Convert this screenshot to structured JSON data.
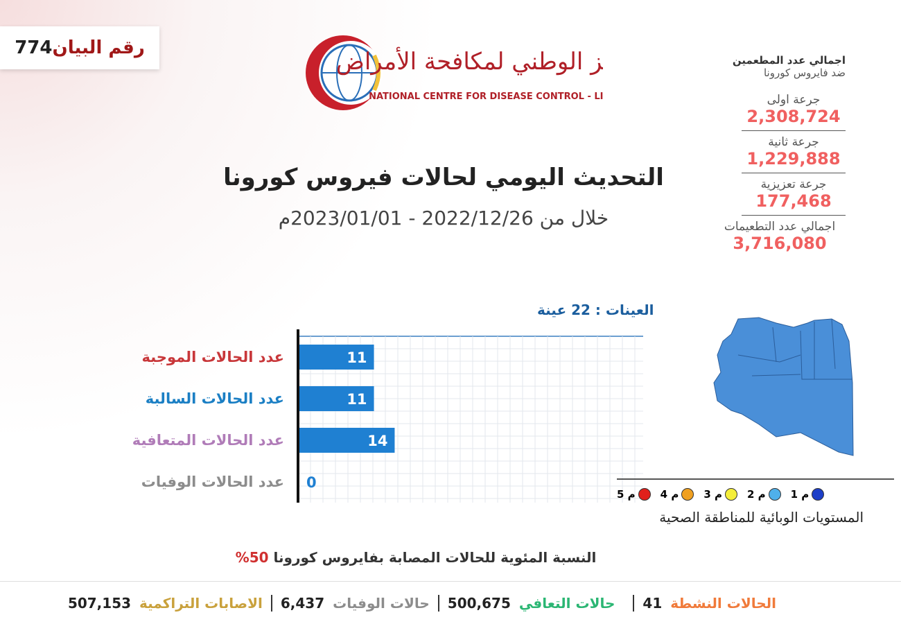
{
  "statement": {
    "label": "رقم البيان",
    "number": "774"
  },
  "logo": {
    "name_ar": "المركز الوطني لمكافحة الأمراض",
    "name_en": "NATIONAL CENTRE FOR DISEASE CONTROL - LIBYA"
  },
  "title": "التحديث اليومي لحالات فيروس كورونا",
  "subtitle": "خلال من 2022/12/26 - 2023/01/01م",
  "vaccination": {
    "heading": "اجمالي عدد المطعمين",
    "subheading": "ضد فايروس كورونا",
    "items": [
      {
        "label": "جرعة اولى",
        "value": "2,308,724"
      },
      {
        "label": "جرعة ثانية",
        "value": "1,229,888"
      },
      {
        "label": "جرعة تعزيزية",
        "value": "177,468"
      },
      {
        "label": "اجمالي عدد التطعيمات",
        "value": "3,716,080"
      }
    ]
  },
  "chart_data": {
    "type": "bar",
    "orientation": "horizontal",
    "title": "عدد العينات : 22 عينة",
    "categories": [
      "عدد الحالات الموجبة",
      "عدد الحالات السالبة",
      "عدد الحالات المتعافية",
      "عدد الحالات الوفيات"
    ],
    "category_colors": [
      "#c8373a",
      "#1b7fc4",
      "#b07cb8",
      "#8c8c8c"
    ],
    "values": [
      11,
      11,
      14,
      0
    ],
    "color": "#1f80d2",
    "xlim": [
      0,
      50
    ],
    "grid": true
  },
  "map_legend": {
    "title": "المستويات الوبائية للمناطقة الصحية",
    "levels": [
      {
        "label": "م 1",
        "color": "#1d3fc8"
      },
      {
        "label": "م 2",
        "color": "#4fb0ea"
      },
      {
        "label": "م 3",
        "color": "#f5ee3a"
      },
      {
        "label": "م 4",
        "color": "#f0a020"
      },
      {
        "label": "م 5",
        "color": "#e0201c"
      }
    ]
  },
  "percentage": {
    "text": "النسبة المئوية للحالات المصابة بفايروس كورونا",
    "value": "50%"
  },
  "footer": [
    {
      "label": "الحالات النشطة",
      "value": "41",
      "color": "#f07a3a"
    },
    {
      "label": "حالات التعافي",
      "value": "500,675",
      "color": "#2bb673"
    },
    {
      "label": "حالات الوفيات",
      "value": "6,437",
      "color": "#8c8c8c"
    },
    {
      "label": "الاصابات التراكمية",
      "value": "507,153",
      "color": "#c9a13c"
    }
  ]
}
